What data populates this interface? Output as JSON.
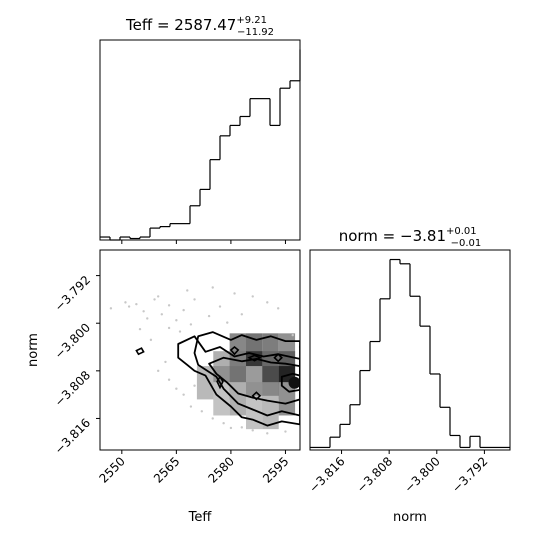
{
  "chart_data": {
    "type": "corner",
    "params": [
      "Teff",
      "norm"
    ],
    "teff_hist": {
      "title_name": "Teff",
      "title_value": "2587.47",
      "title_plus": "+9.21",
      "title_minus": "−11.92",
      "xlim": [
        2544,
        2599
      ],
      "bin_edges": [
        2544.0,
        2546.75,
        2549.5,
        2552.25,
        2555.0,
        2557.75,
        2560.5,
        2563.25,
        2566.0,
        2568.75,
        2571.5,
        2574.25,
        2577.0,
        2579.75,
        2582.5,
        2585.25,
        2588.0,
        2590.75,
        2593.5,
        2596.25,
        2599.0
      ],
      "counts": [
        2,
        0,
        2,
        1,
        2,
        8,
        9,
        11,
        11,
        23,
        34,
        54,
        70,
        77,
        83,
        95,
        95,
        77,
        102,
        107,
        128
      ]
    },
    "norm_hist": {
      "title_name": "norm",
      "title_value": "−3.81",
      "title_plus": "+0.01",
      "title_minus": "−0.01",
      "xlim": [
        -3.8213,
        -3.7877
      ],
      "bin_edges": [
        -3.8213,
        -3.81962,
        -3.81794,
        -3.81626,
        -3.81458,
        -3.8129,
        -3.81122,
        -3.80954,
        -3.80786,
        -3.80618,
        -3.8045,
        -3.80282,
        -3.80114,
        -3.79946,
        -3.79778,
        -3.7961,
        -3.79442,
        -3.79274,
        -3.79106,
        -3.78938,
        -3.7877
      ],
      "counts": [
        3,
        3,
        15,
        30,
        53,
        93,
        127,
        177,
        223,
        218,
        180,
        145,
        89,
        50,
        17,
        3,
        16,
        3,
        3,
        3
      ]
    },
    "joint": {
      "xlim": [
        2544,
        2599
      ],
      "ylim": [
        -3.8213,
        -3.7877
      ],
      "ylim_note": "top of axis = -3.7877, bottom = -3.8213",
      "cells": [
        {
          "x": 2581.9,
          "y": -3.8045,
          "v": 0.5
        },
        {
          "x": 2586.4,
          "y": -3.8045,
          "v": 0.6
        },
        {
          "x": 2590.9,
          "y": -3.8045,
          "v": 0.55
        },
        {
          "x": 2595.4,
          "y": -3.8045,
          "v": 0.45
        },
        {
          "x": 2577.4,
          "y": -3.8075,
          "v": 0.3
        },
        {
          "x": 2581.9,
          "y": -3.8075,
          "v": 0.55
        },
        {
          "x": 2586.4,
          "y": -3.8075,
          "v": 0.9
        },
        {
          "x": 2590.9,
          "y": -3.8075,
          "v": 0.65
        },
        {
          "x": 2595.4,
          "y": -3.8075,
          "v": 0.7
        },
        {
          "x": 2572.9,
          "y": -3.81,
          "v": 0.25
        },
        {
          "x": 2577.4,
          "y": -3.81,
          "v": 0.45
        },
        {
          "x": 2581.9,
          "y": -3.81,
          "v": 0.6
        },
        {
          "x": 2586.4,
          "y": -3.81,
          "v": 0.4
        },
        {
          "x": 2590.9,
          "y": -3.81,
          "v": 0.8
        },
        {
          "x": 2595.4,
          "y": -3.81,
          "v": 1.0
        },
        {
          "x": 2577.4,
          "y": -3.8127,
          "v": 0.2
        },
        {
          "x": 2581.9,
          "y": -3.8127,
          "v": 0.3
        },
        {
          "x": 2586.4,
          "y": -3.8127,
          "v": 0.45
        },
        {
          "x": 2590.9,
          "y": -3.8127,
          "v": 0.5
        },
        {
          "x": 2595.4,
          "y": -3.8127,
          "v": 0.45
        },
        {
          "x": 2586.4,
          "y": -3.815,
          "v": 0.2
        },
        {
          "x": 2590.9,
          "y": -3.815,
          "v": 0.25
        }
      ],
      "contours": [
        [
          [
            2565.5,
            -3.8035
          ],
          [
            2570,
            -3.8022
          ],
          [
            2573,
            -3.8048
          ],
          [
            2577,
            -3.804
          ],
          [
            2581,
            -3.8056
          ],
          [
            2585,
            -3.805
          ],
          [
            2589,
            -3.8056
          ],
          [
            2593,
            -3.8052
          ],
          [
            2599,
            -3.806
          ],
          [
            2599,
            -3.817
          ],
          [
            2594,
            -3.8165
          ],
          [
            2590,
            -3.8172
          ],
          [
            2586,
            -3.8162
          ],
          [
            2583,
            -3.8158
          ],
          [
            2580,
            -3.814
          ],
          [
            2576,
            -3.812
          ],
          [
            2573,
            -3.8088
          ],
          [
            2570,
            -3.808
          ],
          [
            2568,
            -3.807
          ],
          [
            2565.5,
            -3.8058
          ],
          [
            2565.5,
            -3.8035
          ]
        ],
        [
          [
            2571,
            -3.8022
          ],
          [
            2575,
            -3.8015
          ],
          [
            2580,
            -3.8028
          ],
          [
            2583,
            -3.802
          ],
          [
            2587,
            -3.8028
          ],
          [
            2591,
            -3.8022
          ],
          [
            2595,
            -3.803
          ],
          [
            2599,
            -3.803
          ],
          [
            2599,
            -3.8155
          ],
          [
            2594,
            -3.8148
          ],
          [
            2590,
            -3.8155
          ],
          [
            2586,
            -3.8145
          ],
          [
            2582,
            -3.8135
          ],
          [
            2578,
            -3.811
          ],
          [
            2576,
            -3.809
          ],
          [
            2573,
            -3.8078
          ],
          [
            2571,
            -3.807
          ],
          [
            2570,
            -3.805
          ],
          [
            2571,
            -3.8022
          ]
        ],
        [
          [
            2574,
            -3.8068
          ],
          [
            2578,
            -3.8058
          ],
          [
            2583,
            -3.8064
          ],
          [
            2587,
            -3.806
          ],
          [
            2591,
            -3.8066
          ],
          [
            2595,
            -3.8068
          ],
          [
            2599,
            -3.8072
          ],
          [
            2599,
            -3.8128
          ],
          [
            2595,
            -3.8135
          ],
          [
            2590,
            -3.813
          ],
          [
            2586,
            -3.8125
          ],
          [
            2582,
            -3.8118
          ],
          [
            2579,
            -3.81
          ],
          [
            2576,
            -3.8085
          ],
          [
            2574,
            -3.8068
          ]
        ],
        [
          [
            2594,
            -3.809
          ],
          [
            2597,
            -3.8085
          ],
          [
            2599,
            -3.8088
          ],
          [
            2599,
            -3.8112
          ],
          [
            2596,
            -3.8115
          ],
          [
            2594,
            -3.8105
          ],
          [
            2594,
            -3.809
          ]
        ]
      ],
      "islands": [
        [
          [
            2554,
            -3.8046
          ],
          [
            2555.4,
            -3.8042
          ],
          [
            2556,
            -3.8048
          ],
          [
            2554.6,
            -3.8052
          ],
          [
            2554,
            -3.8046
          ]
        ],
        [
          [
            2576.2,
            -3.8098
          ],
          [
            2577,
            -3.809
          ],
          [
            2577.8,
            -3.8098
          ],
          [
            2577,
            -3.8108
          ],
          [
            2576.2,
            -3.8098
          ]
        ],
        [
          [
            2580,
            -3.8045
          ],
          [
            2581,
            -3.804
          ],
          [
            2582,
            -3.8045
          ],
          [
            2581,
            -3.8052
          ],
          [
            2580,
            -3.8045
          ]
        ],
        [
          [
            2585,
            -3.8058
          ],
          [
            2586.5,
            -3.8054
          ],
          [
            2588,
            -3.8058
          ],
          [
            2586.5,
            -3.8063
          ],
          [
            2585,
            -3.8058
          ]
        ],
        [
          [
            2592,
            -3.8058
          ],
          [
            2593,
            -3.8052
          ],
          [
            2594,
            -3.8058
          ],
          [
            2593,
            -3.8064
          ],
          [
            2592,
            -3.8058
          ]
        ],
        [
          [
            2586,
            -3.8122
          ],
          [
            2587,
            -3.8116
          ],
          [
            2588,
            -3.8122
          ],
          [
            2587,
            -3.8128
          ],
          [
            2586,
            -3.8122
          ]
        ]
      ],
      "scatter": [
        [
          2552,
          -3.7972
        ],
        [
          2554,
          -3.7968
        ],
        [
          2556,
          -3.798
        ],
        [
          2557,
          -3.7992
        ],
        [
          2559,
          -3.796
        ],
        [
          2561,
          -3.7985
        ],
        [
          2563,
          -3.797
        ],
        [
          2565,
          -3.7995
        ],
        [
          2567,
          -3.7978
        ],
        [
          2570,
          -3.796
        ],
        [
          2574,
          -3.7988
        ],
        [
          2577,
          -3.7972
        ],
        [
          2579,
          -3.7999
        ],
        [
          2583,
          -3.7985
        ],
        [
          2551,
          -3.7965
        ],
        [
          2560,
          -3.7955
        ],
        [
          2565,
          -3.811
        ],
        [
          2567,
          -3.812
        ],
        [
          2569,
          -3.814
        ],
        [
          2570,
          -3.8105
        ],
        [
          2572,
          -3.8148
        ],
        [
          2575,
          -3.816
        ],
        [
          2578,
          -3.8168
        ],
        [
          2580,
          -3.8176
        ],
        [
          2583,
          -3.8175
        ],
        [
          2586,
          -3.818
        ],
        [
          2590,
          -3.8185
        ],
        [
          2595,
          -3.8182
        ],
        [
          2562,
          -3.8065
        ],
        [
          2560,
          -3.808
        ],
        [
          2563,
          -3.8095
        ],
        [
          2575,
          -3.794
        ],
        [
          2581,
          -3.795
        ],
        [
          2586,
          -3.7955
        ],
        [
          2590,
          -3.7965
        ],
        [
          2593,
          -3.7975
        ],
        [
          2568,
          -3.7945
        ],
        [
          2555,
          -3.801
        ],
        [
          2558,
          -3.8028
        ],
        [
          2547,
          -3.7975
        ],
        [
          2563,
          -3.8008
        ],
        [
          2569,
          -3.8002
        ],
        [
          2566,
          -3.8014
        ],
        [
          2599,
          -3.804
        ],
        [
          2597,
          -3.802
        ]
      ]
    },
    "x_ticks_teff": [
      2550,
      2565,
      2580,
      2595
    ],
    "x_tick_labels_teff": [
      "2550",
      "2565",
      "2580",
      "2595"
    ],
    "y_ticks_norm": [
      -3.792,
      -3.8,
      -3.808,
      -3.816
    ],
    "y_tick_labels_norm": [
      "−3.792",
      "−3.800",
      "−3.808",
      "−3.816"
    ],
    "x_ticks_norm": [
      -3.816,
      -3.808,
      -3.8,
      -3.792
    ],
    "x_tick_labels_norm": [
      "−3.816",
      "−3.808",
      "−3.800",
      "−3.792"
    ],
    "xlabel_left": "Teff",
    "ylabel_left": "norm",
    "xlabel_right": "norm"
  }
}
